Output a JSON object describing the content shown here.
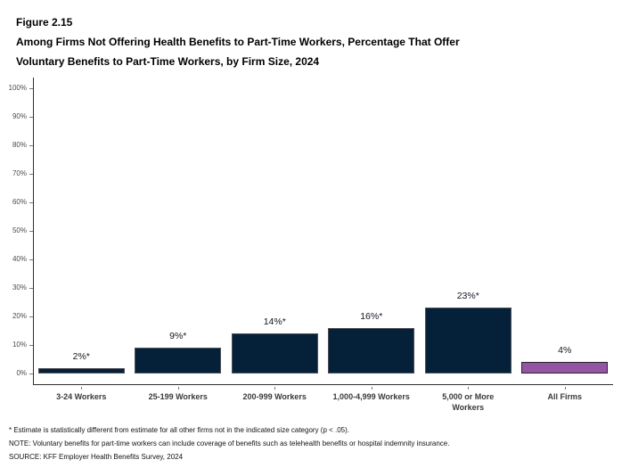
{
  "header": {
    "figure_label": "Figure 2.15",
    "title_line1": "Among Firms Not Offering Health Benefits to Part-Time Workers, Percentage That Offer",
    "title_line2": "Voluntary Benefits to Part-Time Workers, by Firm Size, 2024"
  },
  "chart_data": {
    "type": "bar",
    "title": "Among Firms Not Offering Health Benefits to Part-Time Workers, Percentage That Offer Voluntary Benefits to Part-Time Workers, by Firm Size, 2024",
    "categories": [
      "3-24 Workers",
      "25-199 Workers",
      "200-999 Workers",
      "1,000-4,999 Workers",
      "5,000 or More Workers",
      "All Firms"
    ],
    "values": [
      2,
      9,
      14,
      16,
      23,
      4
    ],
    "value_labels": [
      "2%*",
      "9%*",
      "14%*",
      "16%*",
      "23%*",
      "4%"
    ],
    "bar_colors": [
      "#05213A",
      "#05213A",
      "#05213A",
      "#05213A",
      "#05213A",
      "#9455A3"
    ],
    "bar_border_colors": [
      "#4E5058",
      "#4E5058",
      "#4E5058",
      "#4E5058",
      "#4E5058",
      "#23252F"
    ],
    "y_tick_labels": [
      "0%",
      "10%",
      "20%",
      "30%",
      "40%",
      "50%",
      "60%",
      "70%",
      "80%",
      "90%",
      "100%"
    ],
    "ylim": [
      0,
      100
    ],
    "xlabel": "",
    "ylabel": "",
    "grid": false,
    "legend": "none"
  },
  "footnotes": [
    "* Estimate is statistically different from estimate for all other firms not in the indicated size category (p < .05).",
    "NOTE: Voluntary benefits for part-time workers can include coverage of benefits such as telehealth benefits or hospital indemnity insurance.",
    "SOURCE: KFF Employer Health Benefits Survey, 2024"
  ]
}
